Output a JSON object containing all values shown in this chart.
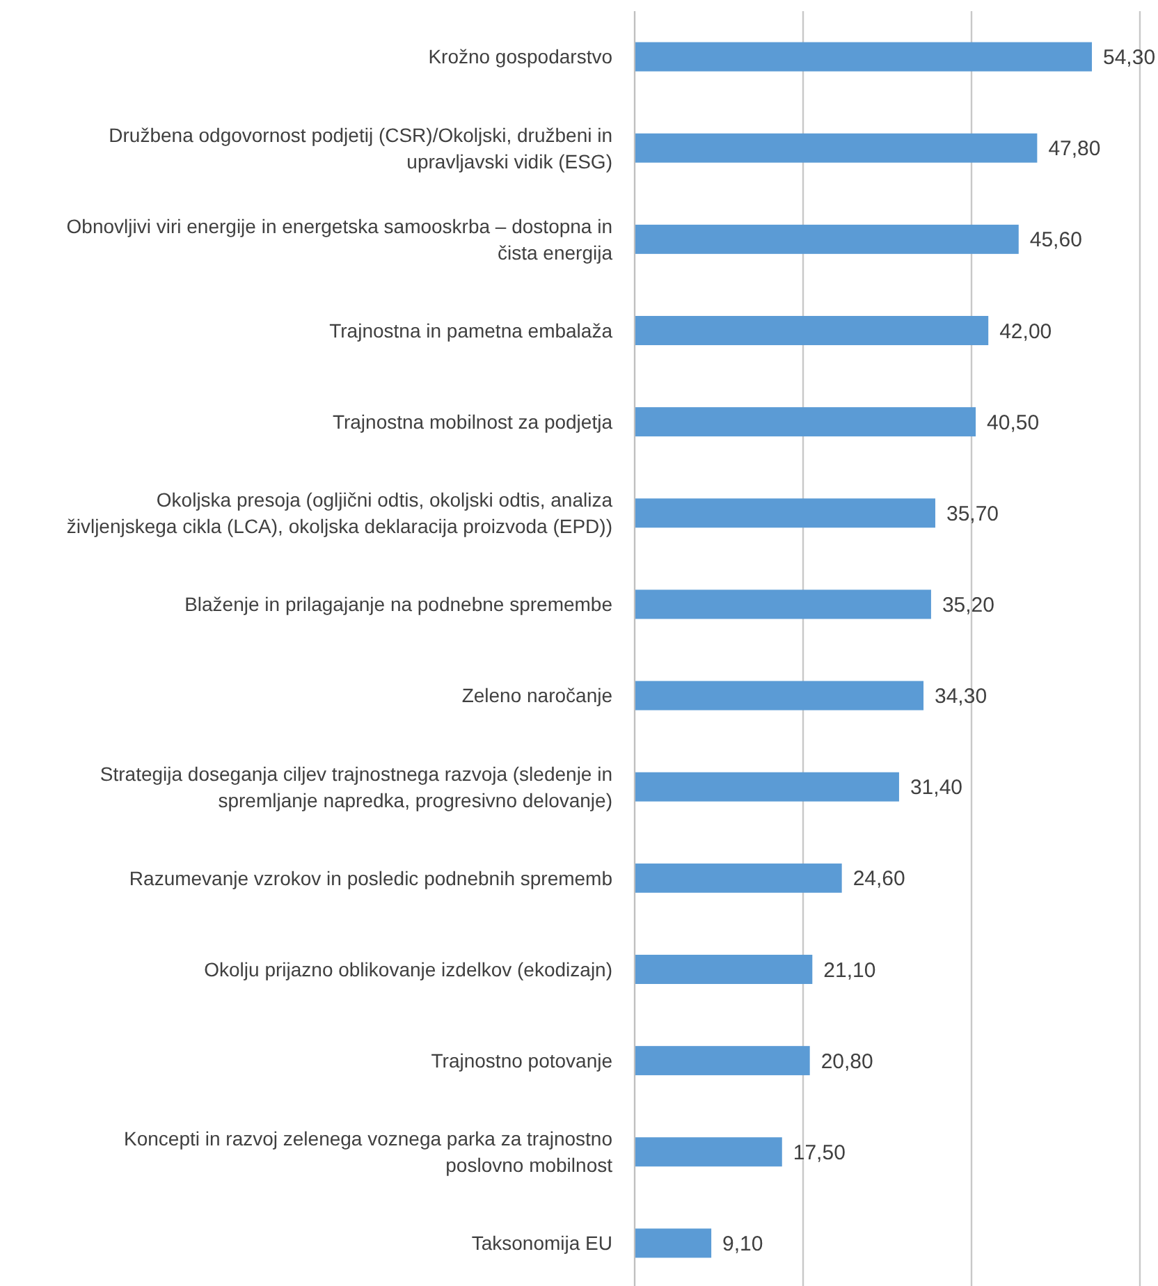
{
  "chart_data": {
    "type": "bar",
    "orientation": "horizontal",
    "categories": [
      "Krožno gospodarstvo",
      "Družbena odgovornost podjetij (CSR)/Okoljski, družbeni in upravljavski vidik (ESG)",
      "Obnovljivi viri energije in energetska samooskrba – dostopna in čista energija",
      "Trajnostna in pametna embalaža",
      "Trajnostna mobilnost za podjetja",
      "Okoljska presoja (ogljični odtis, okoljski odtis, analiza življenjskega cikla (LCA), okoljska deklaracija proizvoda (EPD))",
      "Blaženje in prilagajanje na podnebne spremembe",
      "Zeleno naročanje",
      "Strategija doseganja ciljev trajnostnega razvoja (sledenje in spremljanje napredka, progresivno delovanje)",
      "Razumevanje vzrokov in posledic podnebnih sprememb",
      "Okolju prijazno oblikovanje izdelkov (ekodizajn)",
      "Trajnostno potovanje",
      "Koncepti in razvoj zelenega voznega parka za trajnostno poslovno mobilnost",
      "Taksonomija EU"
    ],
    "values": [
      54.3,
      47.8,
      45.6,
      42.0,
      40.5,
      35.7,
      35.2,
      34.3,
      31.4,
      24.6,
      21.1,
      20.8,
      17.5,
      9.1
    ],
    "value_labels": [
      "54,30",
      "47,80",
      "45,60",
      "42,00",
      "40,50",
      "35,70",
      "35,20",
      "34,30",
      "31,40",
      "24,60",
      "21,10",
      "20,80",
      "17,50",
      "9,10"
    ],
    "color": "#5b9bd5",
    "xlim": [
      0,
      60
    ],
    "xticks": [
      {
        "value": 0,
        "label": null
      },
      {
        "value": 20,
        "label": null
      },
      {
        "value": 40,
        "label": null
      },
      {
        "value": 60,
        "label": null
      }
    ],
    "grid": "x",
    "tick_labels": "y"
  }
}
